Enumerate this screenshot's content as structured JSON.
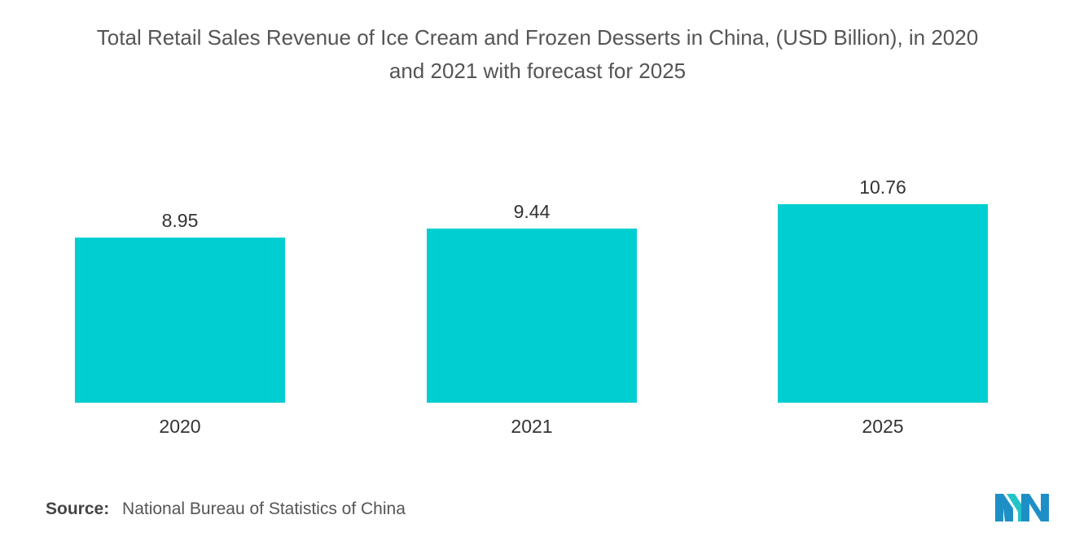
{
  "chart_data": {
    "type": "bar",
    "title_lines": [
      "Total Retail Sales Revenue of Ice Cream and Frozen Desserts in China, (USD Billion), in 2020",
      "and 2021 with forecast for 2025"
    ],
    "categories": [
      "2020",
      "2021",
      "2025"
    ],
    "values": [
      8.95,
      9.44,
      10.76
    ],
    "data_labels": [
      "8.95",
      "9.44",
      "10.76"
    ],
    "xlabel": "",
    "ylabel": "",
    "ylim": [
      0,
      10.76
    ],
    "grid": false,
    "legend": "none",
    "bar_color": "#00CED1"
  },
  "footer": {
    "source_label": "Source:",
    "source_text": "National Bureau of Statistics of China"
  },
  "logo": {
    "icon": "mordor-intelligence-logo",
    "colors": [
      "#1E8FC6",
      "#22C4C9"
    ]
  }
}
